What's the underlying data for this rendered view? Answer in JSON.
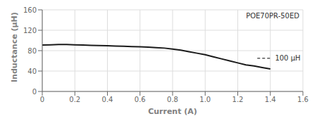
{
  "chart_data": {
    "type": "line",
    "title": "",
    "xlabel": "Current (A)",
    "ylabel": "Inductance (μH)",
    "x": [
      0.0,
      0.05,
      0.1,
      0.15,
      0.2,
      0.25,
      0.3,
      0.35,
      0.4,
      0.45,
      0.5,
      0.55,
      0.6,
      0.65,
      0.7,
      0.75,
      0.8,
      0.85,
      0.9,
      0.95,
      1.0,
      1.05,
      1.1,
      1.15,
      1.2,
      1.25,
      1.3,
      1.35,
      1.4
    ],
    "values": [
      91,
      91.5,
      92,
      92,
      91.5,
      91,
      90.5,
      90,
      89.5,
      89,
      88.5,
      88,
      87.5,
      87,
      86,
      85,
      83,
      81,
      78,
      75,
      72,
      68,
      64,
      60,
      56,
      52,
      50,
      47,
      44
    ],
    "color": "#1a1a1a",
    "xlim": [
      0,
      1.6
    ],
    "ylim": [
      0,
      160
    ],
    "xticks": [
      0,
      0.2,
      0.4,
      0.6,
      0.8,
      {
        "value": 1.0,
        "label": "1.0"
      },
      1.2,
      1.4,
      1.6
    ],
    "yticks": [
      0,
      40,
      80,
      120,
      160
    ],
    "grid": true,
    "annotations": [
      {
        "text": "POE70PR-50ED"
      },
      {
        "text": "100 μH",
        "x": 1.42,
        "y": 65,
        "line_x": [
          1.32,
          1.41
        ],
        "line_style": "dashed"
      }
    ]
  }
}
